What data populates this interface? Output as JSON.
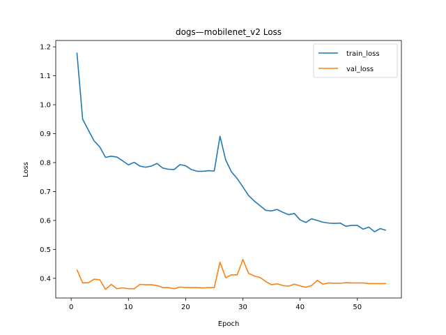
{
  "chart_data": {
    "type": "line",
    "title": "dogs—mobilenet_v2 Loss",
    "xlabel": "Epoch",
    "ylabel": "Loss",
    "xlim": [
      -2.7,
      57.7
    ],
    "ylim": [
      0.332,
      1.222
    ],
    "xticks": [
      0,
      10,
      20,
      30,
      40,
      50
    ],
    "yticks": [
      0.4,
      0.5,
      0.6,
      0.7,
      0.8,
      0.9,
      1.0,
      1.1,
      1.2
    ],
    "ytick_labels": [
      "0.4",
      "0.5",
      "0.6",
      "0.7",
      "0.8",
      "0.9",
      "1.0",
      "1.1",
      "1.2"
    ],
    "grid": false,
    "legend_position": "top-right",
    "x": [
      1,
      2,
      3,
      4,
      5,
      6,
      7,
      8,
      9,
      10,
      11,
      12,
      13,
      14,
      15,
      16,
      17,
      18,
      19,
      20,
      21,
      22,
      23,
      24,
      25,
      26,
      27,
      28,
      29,
      30,
      31,
      32,
      33,
      34,
      35,
      36,
      37,
      38,
      39,
      40,
      41,
      42,
      43,
      44,
      45,
      46,
      47,
      48,
      49,
      50,
      51,
      52,
      53,
      54,
      55
    ],
    "series": [
      {
        "name": "train_loss",
        "color": "#1f77b4",
        "values": [
          1.18,
          0.95,
          0.912,
          0.875,
          0.854,
          0.818,
          0.822,
          0.819,
          0.806,
          0.792,
          0.801,
          0.788,
          0.784,
          0.788,
          0.797,
          0.781,
          0.777,
          0.776,
          0.793,
          0.789,
          0.776,
          0.77,
          0.77,
          0.772,
          0.771,
          0.891,
          0.809,
          0.768,
          0.745,
          0.716,
          0.686,
          0.667,
          0.651,
          0.635,
          0.633,
          0.638,
          0.628,
          0.62,
          0.624,
          0.602,
          0.593,
          0.606,
          0.6,
          0.594,
          0.591,
          0.59,
          0.591,
          0.58,
          0.583,
          0.583,
          0.57,
          0.577,
          0.561,
          0.572,
          0.566
        ]
      },
      {
        "name": "val_loss",
        "color": "#ff7f0e",
        "values": [
          0.43,
          0.384,
          0.385,
          0.397,
          0.395,
          0.362,
          0.379,
          0.364,
          0.367,
          0.364,
          0.364,
          0.379,
          0.378,
          0.378,
          0.375,
          0.368,
          0.368,
          0.364,
          0.37,
          0.368,
          0.368,
          0.368,
          0.367,
          0.368,
          0.368,
          0.456,
          0.402,
          0.412,
          0.412,
          0.465,
          0.417,
          0.408,
          0.403,
          0.389,
          0.378,
          0.381,
          0.375,
          0.373,
          0.38,
          0.374,
          0.369,
          0.375,
          0.393,
          0.38,
          0.384,
          0.383,
          0.383,
          0.385,
          0.384,
          0.384,
          0.384,
          0.382,
          0.382,
          0.382,
          0.382
        ]
      }
    ]
  }
}
